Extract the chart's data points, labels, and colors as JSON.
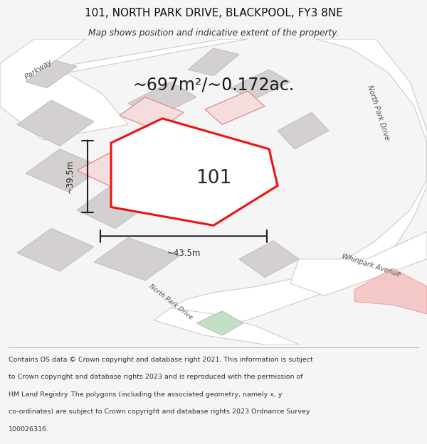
{
  "title_line1": "101, NORTH PARK DRIVE, BLACKPOOL, FY3 8NE",
  "title_line2": "Map shows position and indicative extent of the property.",
  "area_text": "~697m²/~0.172ac.",
  "label_101": "101",
  "dim_height": "~39.5m",
  "dim_width": "~43.5m",
  "footer_lines": [
    "Contains OS data © Crown copyright and database right 2021. This information is subject",
    "to Crown copyright and database rights 2023 and is reproduced with the permission of",
    "HM Land Registry. The polygons (including the associated geometry, namely x, y",
    "co-ordinates) are subject to Crown copyright and database rights 2023 Ordnance Survey",
    "100026316."
  ],
  "bg_color": "#f5f5f5",
  "map_bg": "#eeecec",
  "road_color": "#ffffff",
  "road_outline": "#cccccc",
  "building_fill": "#d4d0d0",
  "building_outline": "#bbbbbb",
  "red_plot_color": "#ee1111",
  "red_building_fill": "#f5dddd",
  "red_building_outline": "#e08080",
  "pink_fill": "#f5c8c8",
  "pink_outline": "#e8a0a0",
  "green_fill": "#c5dfc5",
  "label_color": "#555555",
  "dim_color": "#222222",
  "text_color": "#111111",
  "footer_color": "#333333"
}
